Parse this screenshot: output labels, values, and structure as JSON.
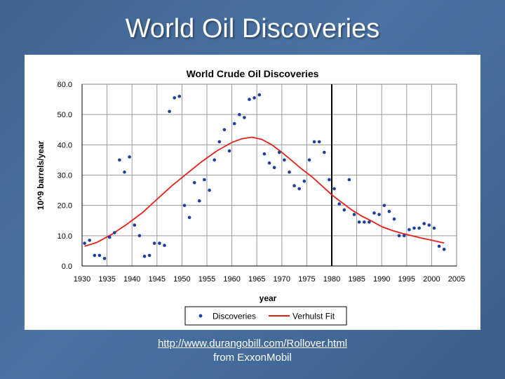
{
  "slide": {
    "title": "World Oil Discoveries",
    "link_text": "http://www.durangobill.com/Rollover.html",
    "source_note": "from ExxonMobil"
  },
  "chart_data": {
    "type": "scatter",
    "title": "World Crude Oil Discoveries",
    "xlabel": "year",
    "ylabel": "10^9 barrels/year",
    "xlim": [
      1930,
      2005
    ],
    "ylim": [
      0,
      60
    ],
    "x_ticks": [
      "1930",
      "1935",
      "1940",
      "1945",
      "1950",
      "1955",
      "1960",
      "1965",
      "1970",
      "1975",
      "1980",
      "1985",
      "1990",
      "1995",
      "2000",
      "2005"
    ],
    "y_ticks": [
      "0.0",
      "10.0",
      "20.0",
      "30.0",
      "40.0",
      "50.0",
      "60.0"
    ],
    "grid": true,
    "legend_position": "bottom",
    "series": [
      {
        "name": "Discoveries",
        "color": "#1c3f9e",
        "marker": "dot",
        "points": [
          [
            1930.5,
            7.5
          ],
          [
            1931.5,
            8.5
          ],
          [
            1932.5,
            3.5
          ],
          [
            1933.5,
            3.5
          ],
          [
            1934.5,
            2.5
          ],
          [
            1935.5,
            9.5
          ],
          [
            1936.5,
            11
          ],
          [
            1937.5,
            35
          ],
          [
            1938.5,
            31
          ],
          [
            1939.5,
            36
          ],
          [
            1940.5,
            13.5
          ],
          [
            1941.5,
            10
          ],
          [
            1942.5,
            3.2
          ],
          [
            1943.5,
            3.5
          ],
          [
            1944.5,
            7.5
          ],
          [
            1945.5,
            7.5
          ],
          [
            1946.5,
            6.8
          ],
          [
            1947.5,
            51
          ],
          [
            1948.5,
            55.5
          ],
          [
            1949.5,
            56
          ],
          [
            1950.5,
            20
          ],
          [
            1951.5,
            16
          ],
          [
            1952.5,
            27.5
          ],
          [
            1953.5,
            21.5
          ],
          [
            1954.5,
            28.5
          ],
          [
            1955.5,
            25
          ],
          [
            1956.5,
            35
          ],
          [
            1957.5,
            41
          ],
          [
            1958.5,
            45
          ],
          [
            1959.5,
            38
          ],
          [
            1960.5,
            47
          ],
          [
            1961.5,
            50
          ],
          [
            1962.5,
            49
          ],
          [
            1963.5,
            55
          ],
          [
            1964.5,
            55.5
          ],
          [
            1965.5,
            56.5
          ],
          [
            1966.5,
            37
          ],
          [
            1967.5,
            34
          ],
          [
            1968.5,
            32.5
          ],
          [
            1969.5,
            37.5
          ],
          [
            1970.5,
            35
          ],
          [
            1971.5,
            31
          ],
          [
            1972.5,
            26.5
          ],
          [
            1973.5,
            25.5
          ],
          [
            1974.5,
            28
          ],
          [
            1975.5,
            35
          ],
          [
            1976.5,
            41
          ],
          [
            1977.5,
            41
          ],
          [
            1978.5,
            37.5
          ],
          [
            1979.5,
            28.5
          ],
          [
            1980.5,
            25.5
          ],
          [
            1981.5,
            20.5
          ],
          [
            1982.5,
            18.5
          ],
          [
            1983.5,
            28.5
          ],
          [
            1984.5,
            17
          ],
          [
            1985.5,
            14.5
          ],
          [
            1986.5,
            14.5
          ],
          [
            1987.5,
            14.5
          ],
          [
            1988.5,
            17.5
          ],
          [
            1989.5,
            17
          ],
          [
            1990.5,
            20
          ],
          [
            1991.5,
            18
          ],
          [
            1992.5,
            15.5
          ],
          [
            1993.5,
            10
          ],
          [
            1994.5,
            10
          ],
          [
            1995.5,
            12
          ],
          [
            1996.5,
            12.5
          ],
          [
            1997.5,
            12.5
          ],
          [
            1998.5,
            14
          ],
          [
            1999.5,
            13.5
          ],
          [
            2000.5,
            12.5
          ],
          [
            2001.5,
            6.5
          ],
          [
            2002.5,
            5.5
          ]
        ]
      },
      {
        "name": "Verhulst Fit",
        "color": "#e8201a",
        "marker": "line",
        "points": [
          [
            1930.5,
            6.5
          ],
          [
            1933,
            7.8
          ],
          [
            1936,
            10.5
          ],
          [
            1939,
            13.8
          ],
          [
            1942,
            17.5
          ],
          [
            1945,
            22
          ],
          [
            1948,
            26.5
          ],
          [
            1951,
            30.5
          ],
          [
            1954,
            34.5
          ],
          [
            1957,
            38
          ],
          [
            1960,
            40.8
          ],
          [
            1962,
            42
          ],
          [
            1964,
            42.5
          ],
          [
            1966,
            41.8
          ],
          [
            1968,
            40
          ],
          [
            1970,
            37.5
          ],
          [
            1972,
            34.8
          ],
          [
            1974,
            32
          ],
          [
            1976,
            29.5
          ],
          [
            1978,
            26.5
          ],
          [
            1980,
            23.5
          ],
          [
            1982,
            21
          ],
          [
            1984,
            18.5
          ],
          [
            1986,
            16.5
          ],
          [
            1988,
            14.8
          ],
          [
            1990,
            13
          ],
          [
            1992,
            11.8
          ],
          [
            1994,
            10.8
          ],
          [
            1996,
            10
          ],
          [
            1998,
            9.2
          ],
          [
            2000,
            8.5
          ],
          [
            2002.5,
            7.6
          ]
        ]
      }
    ]
  }
}
